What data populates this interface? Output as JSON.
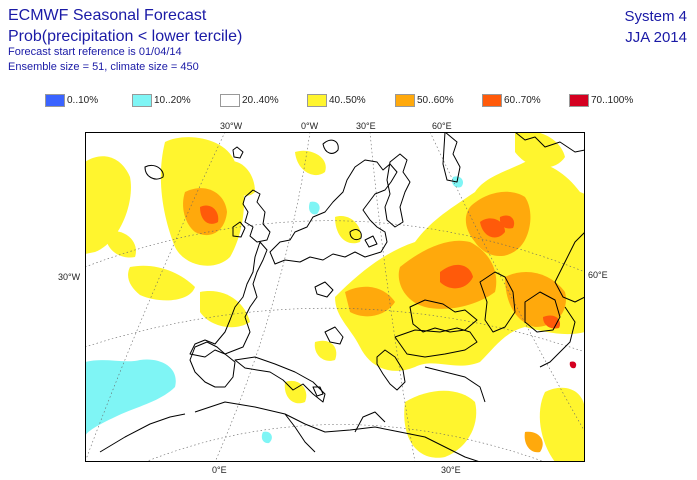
{
  "header": {
    "title": "ECMWF Seasonal Forecast",
    "subtitle": "Prob(precipitation < lower tercile)",
    "start_ref": "Forecast start reference is 01/04/14",
    "ensemble": "Ensemble size = 51, climate size = 450",
    "system": "System 4",
    "period": "JJA 2014"
  },
  "legend": [
    {
      "label": "0..10%",
      "color": "#3a63ff"
    },
    {
      "label": "10..20%",
      "color": "#7ff5f5"
    },
    {
      "label": "20..40%",
      "color": "#ffffff"
    },
    {
      "label": "40..50%",
      "color": "#fff52e"
    },
    {
      "label": "50..60%",
      "color": "#ffa90c"
    },
    {
      "label": "60..70%",
      "color": "#ff5a0a"
    },
    {
      "label": "70..100%",
      "color": "#d40020"
    }
  ],
  "axis_labels": {
    "top": [
      "30°W",
      "0°W",
      "30°E",
      "60°E"
    ],
    "left": "30°W",
    "right": "60°E",
    "bottom": [
      "0°E",
      "30°E"
    ]
  }
}
